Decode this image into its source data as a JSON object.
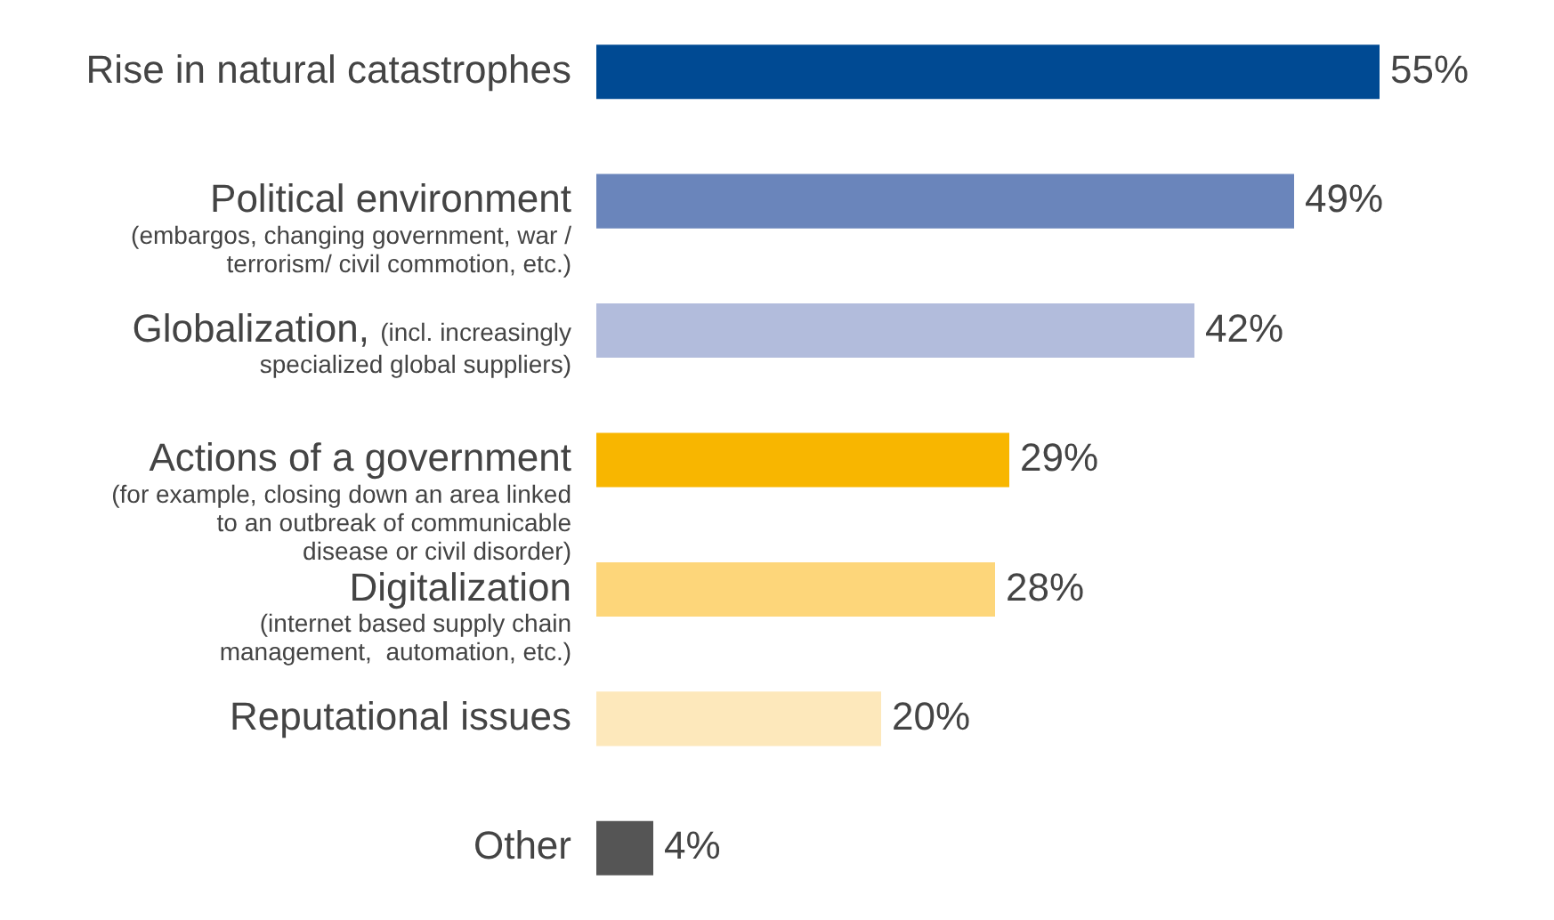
{
  "chart_data": {
    "type": "bar",
    "orientation": "horizontal",
    "categories": [
      "Rise in natural catastrophes",
      "Political environment\n(embargos, changing government, war /\nterrorism/ civil commotion, etc.)",
      "Globalization, (incl. increasingly\nspecialized global suppliers)",
      "Actions of a government\n(for example, closing down an area linked\nto an outbreak of communicable\ndisease or civil disorder)",
      "Digitalization\n(internet based supply chain\nmanagement,  automation, etc.)",
      "Reputational issues",
      "Other"
    ],
    "values": [
      55,
      49,
      42,
      29,
      28,
      20,
      4
    ],
    "colors": [
      "#004a93",
      "#6a85bb",
      "#b2bcdc",
      "#f8b600",
      "#fdd67a",
      "#fde8bb",
      "#555555"
    ],
    "value_labels": [
      "55%",
      "49%",
      "42%",
      "29%",
      "28%",
      "20%",
      "4%"
    ],
    "legend": false
  }
}
